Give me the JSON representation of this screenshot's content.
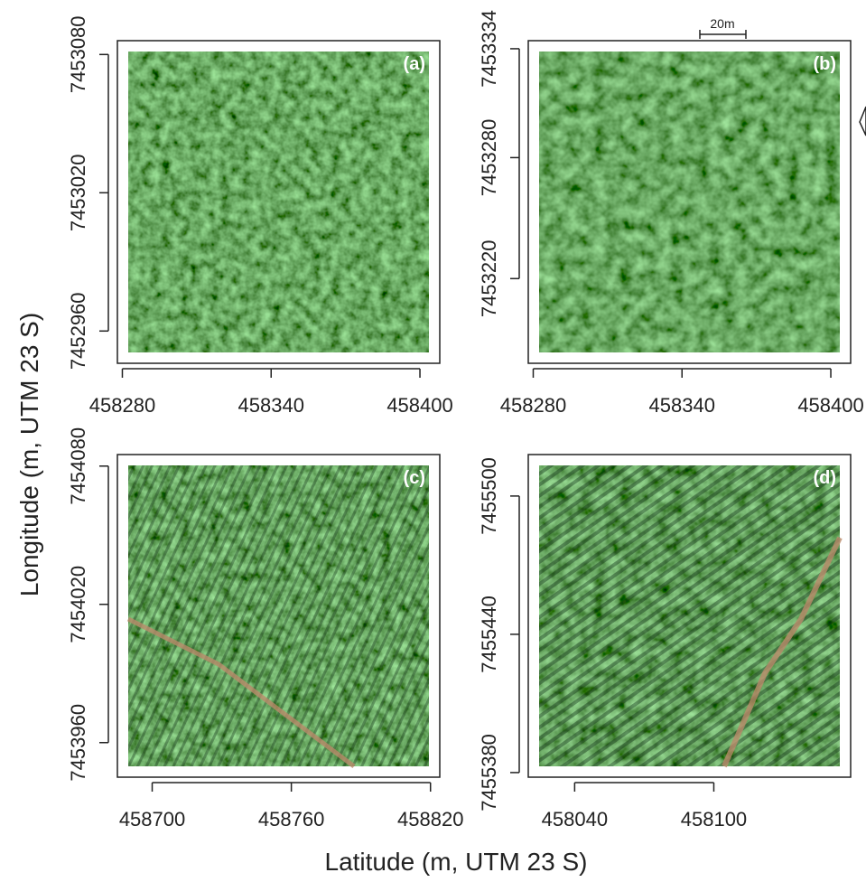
{
  "axis_labels": {
    "y": "Longitude (m, UTM 23 S)",
    "x": "Latitude (m, UTM 23 S)"
  },
  "scale_bar": "20m",
  "panels": [
    {
      "label": "(a)",
      "xlim": [
        458278,
        458408
      ],
      "ylim": [
        7452946,
        7453086
      ],
      "xticks": [
        458280,
        458340,
        458400
      ],
      "yticks": [
        7452960,
        7453020,
        7453080
      ]
    },
    {
      "label": "(b)",
      "xlim": [
        458278,
        458408
      ],
      "ylim": [
        7453178,
        7453338
      ],
      "xticks": [
        458280,
        458340,
        458400
      ],
      "yticks": [
        7453220,
        7453280,
        7453334
      ]
    },
    {
      "label": "(c)",
      "xlim": [
        458685,
        458824
      ],
      "ylim": [
        7453945,
        7454085
      ],
      "xticks": [
        458700,
        458760,
        458820
      ],
      "yticks": [
        7453960,
        7454020,
        7454080
      ]
    },
    {
      "label": "(d)",
      "xlim": [
        458020,
        458159
      ],
      "ylim": [
        7455378,
        7455518
      ],
      "xticks": [
        458040,
        458100
      ],
      "yticks": [
        7455380,
        7455440,
        7455500
      ]
    }
  ]
}
